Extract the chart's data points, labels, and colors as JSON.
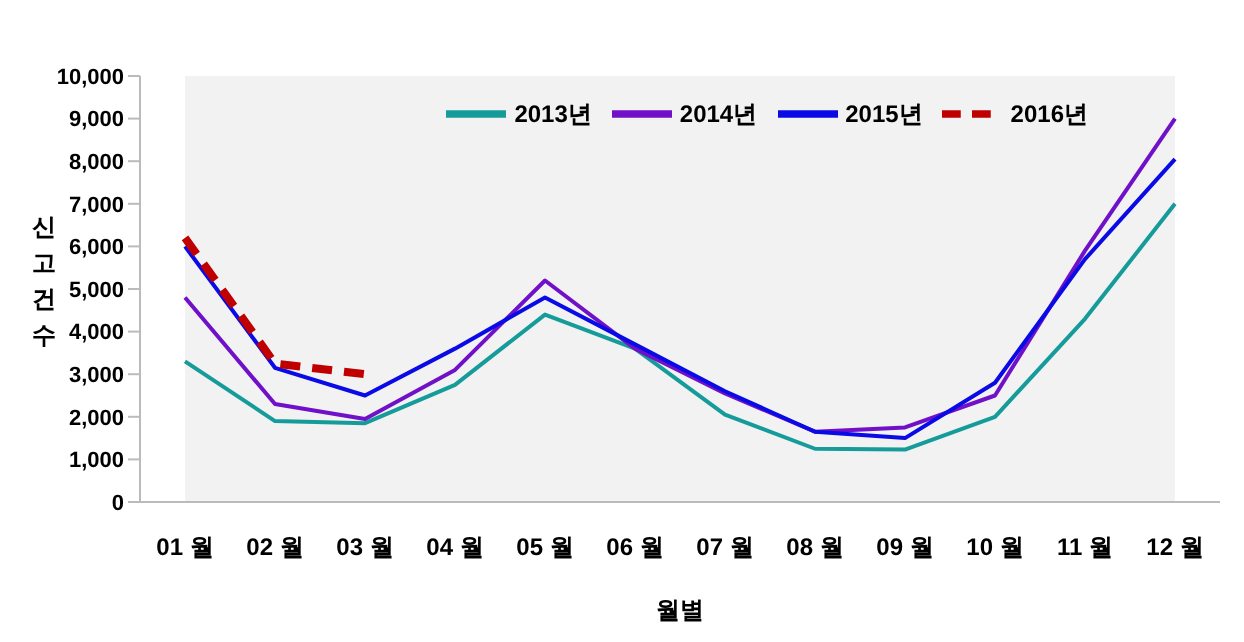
{
  "chart_data": {
    "type": "line",
    "xlabel": "월별",
    "ylabel": "신고건수",
    "categories": [
      "01 월",
      "02 월",
      "03 월",
      "04 월",
      "05 월",
      "06 월",
      "07 월",
      "08 월",
      "09 월",
      "10 월",
      "11 월",
      "12 월"
    ],
    "series": [
      {
        "name": "2013년",
        "color": "#169b9b",
        "values": [
          3300,
          1900,
          1850,
          2750,
          4400,
          3600,
          2050,
          1250,
          1230,
          2000,
          4300,
          7000
        ]
      },
      {
        "name": "2014년",
        "color": "#7010c8",
        "values": [
          4800,
          2300,
          1950,
          3100,
          5200,
          3600,
          2550,
          1650,
          1750,
          2500,
          5900,
          9000
        ]
      },
      {
        "name": "2015년",
        "color": "#0a0ae6",
        "values": [
          6000,
          3150,
          2500,
          3600,
          4800,
          3700,
          2600,
          1650,
          1500,
          2800,
          5700,
          8050
        ]
      },
      {
        "name": "2016년",
        "color": "#c00000",
        "line_style": "dashed",
        "values": [
          6200,
          3250,
          3000,
          null,
          null,
          null,
          null,
          null,
          null,
          null,
          null,
          null
        ]
      }
    ],
    "ylim": [
      0,
      10000
    ],
    "yticks": [
      0,
      {
        "value": 1000,
        "label": "1,000"
      },
      {
        "value": 2000,
        "label": "2,000"
      },
      {
        "value": 3000,
        "label": "3,000"
      },
      {
        "value": 4000,
        "label": "4,000"
      },
      {
        "value": 5000,
        "label": "5,000"
      },
      {
        "value": 6000,
        "label": "6,000"
      },
      {
        "value": 7000,
        "label": "7,000"
      },
      {
        "value": 8000,
        "label": "8,000"
      },
      {
        "value": 9000,
        "label": "9,000"
      },
      {
        "value": 10000,
        "label": "10,000"
      }
    ],
    "legend": "top right",
    "marker": "none"
  }
}
